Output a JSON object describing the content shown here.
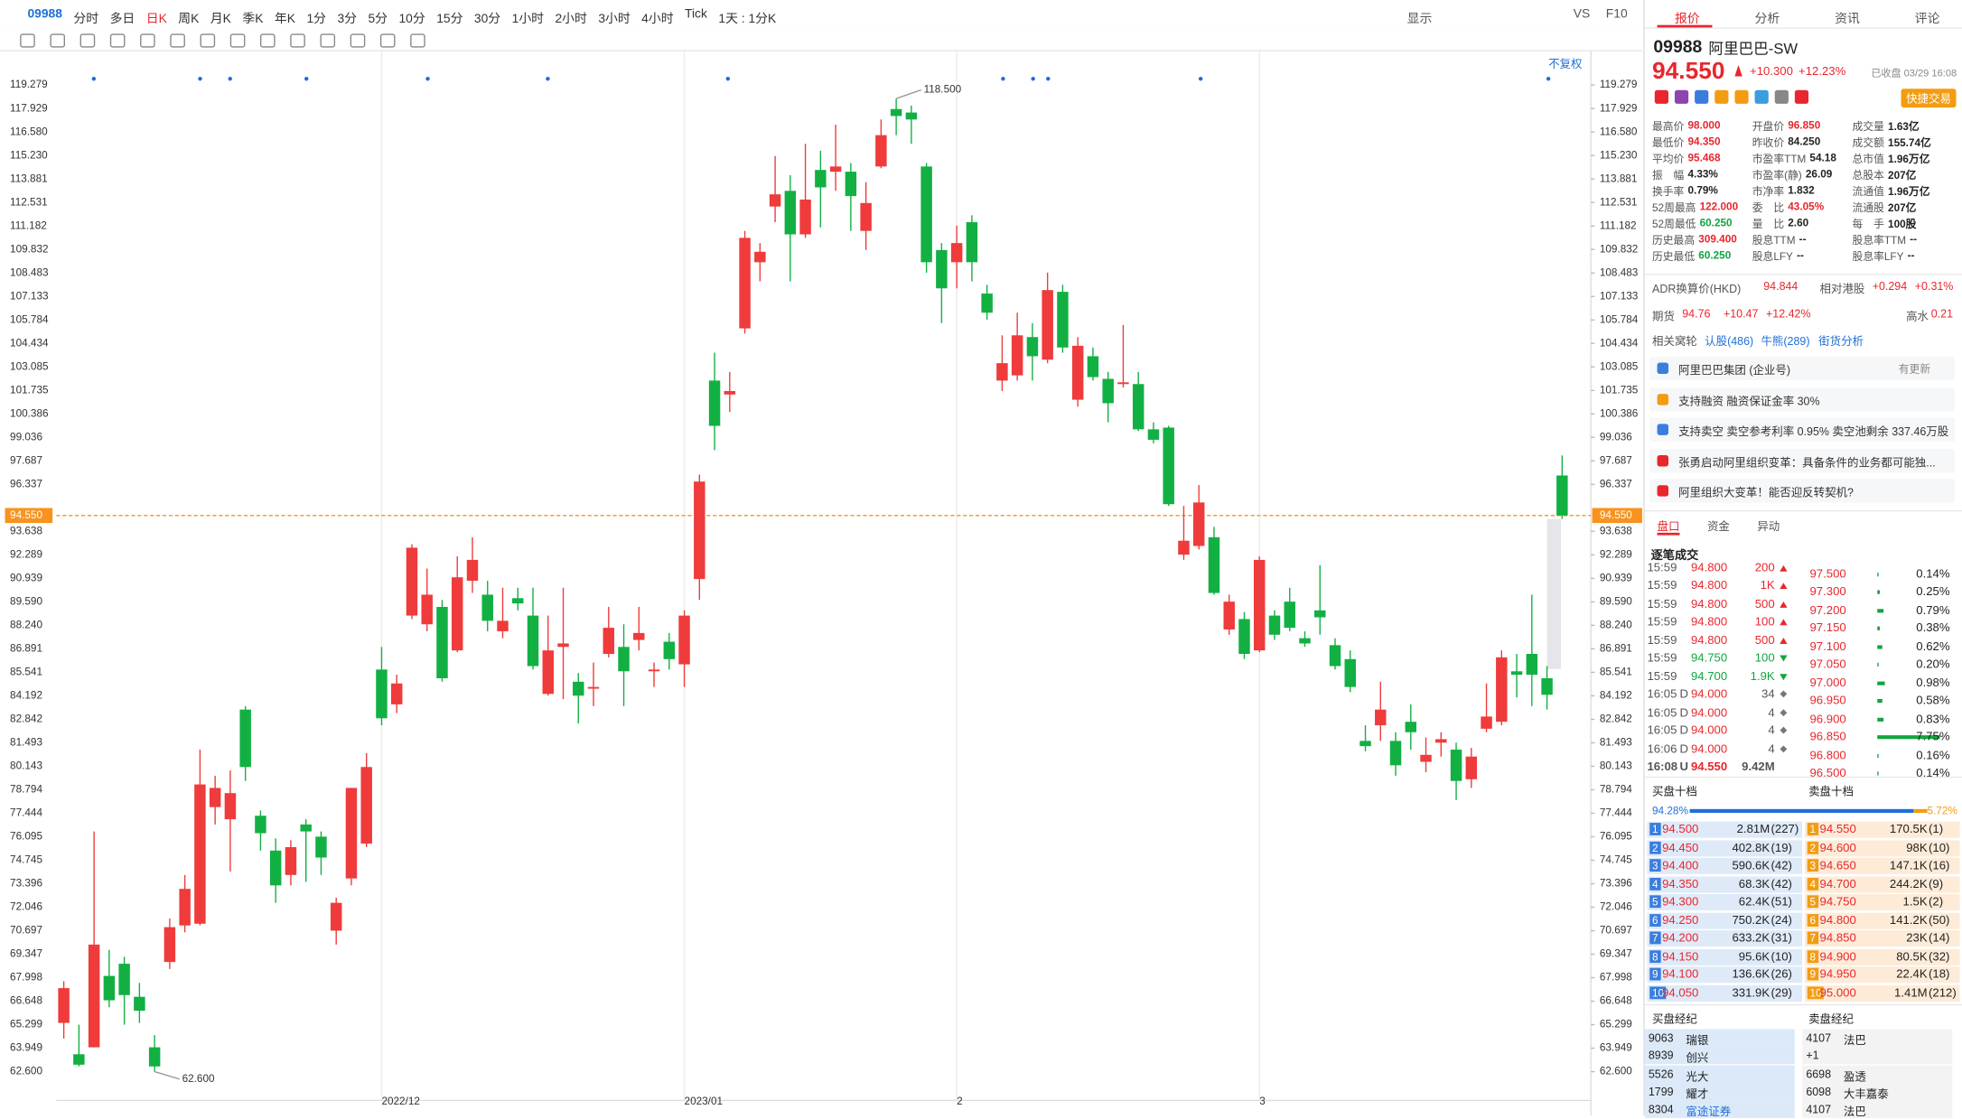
{
  "toolbar": {
    "code": "09988",
    "periods": [
      "分时",
      "多日",
      "日K",
      "周K",
      "月K",
      "季K",
      "年K",
      "1分",
      "3分",
      "5分",
      "10分",
      "15分",
      "30分",
      "1小时",
      "2小时",
      "3小时",
      "4小时",
      "Tick",
      "1天 : 1分K"
    ],
    "right": [
      "显示",
      "VS",
      "F10"
    ],
    "adjust_label": "不复权"
  },
  "chart_data": {
    "type": "candlestick",
    "up_color": "#ef3b3b",
    "down_color": "#12b043",
    "last_price_color": "#f7931e",
    "ylim": [
      62.6,
      119.279
    ],
    "yticks": [
      119.279,
      117.929,
      {
        "value": 116.58,
        "label": "116.580"
      },
      {
        "value": 115.23,
        "label": "115.230"
      },
      113.881,
      112.531,
      111.182,
      109.832,
      108.483,
      107.133,
      105.784,
      104.434,
      103.085,
      101.735,
      100.386,
      99.036,
      97.687,
      96.337,
      93.638,
      92.289,
      90.939,
      {
        "value": 89.59,
        "label": "89.590"
      },
      {
        "value": 88.24,
        "label": "88.240"
      },
      86.891,
      85.541,
      84.192,
      82.842,
      81.493,
      80.143,
      78.794,
      77.444,
      76.095,
      74.745,
      73.396,
      72.046,
      70.697,
      69.347,
      67.998,
      66.648,
      65.299,
      63.949,
      {
        "value": 62.6,
        "label": "62.600"
      }
    ],
    "grid": false,
    "last_price": {
      "value": 94.55,
      "label": "94.550"
    },
    "annotations": [
      {
        "value": 118.5,
        "label": "118.500"
      },
      {
        "value": 62.6,
        "label": "62.600"
      }
    ],
    "categories": [
      null,
      null,
      null,
      null,
      null,
      null,
      null,
      null,
      null,
      null,
      null,
      null,
      null,
      null,
      null,
      null,
      null,
      null,
      null,
      null,
      null,
      "2022/12",
      null,
      null,
      null,
      null,
      null,
      null,
      null,
      null,
      null,
      null,
      null,
      null,
      null,
      null,
      null,
      null,
      null,
      null,
      null,
      "2023/01",
      null,
      null,
      null,
      null,
      null,
      null,
      null,
      null,
      null,
      null,
      null,
      null,
      null,
      null,
      null,
      null,
      null,
      "2",
      null,
      null,
      null,
      null,
      null,
      null,
      null,
      null,
      null,
      null,
      null,
      null,
      null,
      null,
      null,
      null,
      null,
      null,
      null,
      "3",
      null,
      null,
      null,
      null,
      null,
      null,
      null,
      null,
      null,
      null,
      null,
      null,
      null,
      null,
      null,
      null,
      null,
      null,
      null,
      null
    ],
    "ohlc": [
      [
        65.4,
        67.8,
        64.5,
        67.4
      ],
      [
        63.6,
        65.3,
        62.9,
        63.0
      ],
      [
        64.0,
        76.4,
        64.0,
        69.9
      ],
      [
        68.1,
        69.6,
        66.3,
        66.7
      ],
      [
        68.8,
        69.2,
        65.3,
        67.0
      ],
      [
        66.9,
        67.7,
        65.4,
        66.1
      ],
      [
        64.0,
        64.7,
        62.6,
        62.9
      ],
      [
        68.9,
        71.4,
        68.5,
        70.9
      ],
      [
        71.0,
        73.9,
        70.6,
        73.1
      ],
      [
        71.1,
        81.1,
        71.0,
        79.1
      ],
      [
        77.8,
        79.6,
        76.8,
        78.9
      ],
      [
        77.1,
        79.9,
        74.1,
        78.6
      ],
      [
        83.4,
        83.6,
        79.3,
        80.1
      ],
      [
        77.3,
        77.6,
        75.3,
        76.3
      ],
      [
        75.3,
        76.0,
        72.3,
        73.3
      ],
      [
        73.9,
        75.9,
        73.3,
        75.5
      ],
      [
        76.8,
        77.1,
        73.5,
        76.4
      ],
      [
        76.1,
        76.4,
        73.9,
        74.9
      ],
      [
        70.7,
        72.6,
        69.9,
        72.3
      ],
      [
        73.7,
        78.9,
        73.3,
        78.9
      ],
      [
        75.7,
        80.9,
        75.5,
        80.1
      ],
      [
        85.7,
        87.0,
        82.5,
        82.9
      ],
      [
        83.7,
        85.4,
        83.2,
        84.9
      ],
      [
        88.8,
        92.9,
        88.6,
        92.7
      ],
      [
        88.3,
        91.5,
        87.9,
        90.0
      ],
      [
        89.3,
        89.7,
        85.0,
        85.2
      ],
      [
        86.8,
        92.2,
        86.7,
        91.0
      ],
      [
        90.8,
        93.3,
        90.1,
        92.0
      ],
      [
        90.0,
        90.8,
        87.9,
        88.5
      ],
      [
        87.9,
        90.4,
        87.5,
        88.5
      ],
      [
        89.8,
        90.4,
        89.1,
        89.5
      ],
      [
        88.8,
        90.4,
        85.7,
        85.9
      ],
      [
        84.3,
        88.8,
        84.2,
        86.8
      ],
      [
        87.0,
        90.4,
        84.0,
        87.2
      ],
      [
        85.0,
        85.5,
        82.6,
        84.2
      ],
      [
        84.6,
        86.1,
        83.6,
        84.7
      ],
      [
        86.6,
        89.3,
        86.4,
        88.1
      ],
      [
        87.0,
        88.3,
        83.6,
        85.6
      ],
      [
        87.4,
        89.3,
        86.8,
        87.8
      ],
      [
        85.6,
        86.1,
        84.7,
        85.7
      ],
      [
        87.3,
        87.8,
        85.7,
        86.3
      ],
      [
        86.0,
        89.1,
        84.7,
        88.8
      ],
      [
        90.9,
        96.9,
        89.7,
        96.5
      ],
      [
        102.3,
        103.9,
        98.3,
        99.7
      ],
      [
        101.5,
        102.8,
        100.5,
        101.7
      ],
      [
        105.3,
        110.9,
        105.0,
        110.5
      ],
      [
        109.1,
        110.2,
        108.0,
        109.7
      ],
      [
        112.3,
        115.2,
        111.4,
        113.0
      ],
      [
        113.2,
        114.1,
        108.0,
        110.7
      ],
      [
        110.7,
        115.9,
        110.5,
        112.7
      ],
      [
        114.4,
        115.5,
        111.1,
        113.4
      ],
      [
        114.3,
        117.0,
        113.2,
        114.6
      ],
      [
        114.3,
        114.8,
        110.9,
        112.9
      ],
      [
        110.9,
        113.7,
        109.8,
        112.5
      ],
      [
        114.6,
        117.3,
        114.5,
        116.4
      ],
      [
        117.9,
        118.5,
        116.4,
        117.5
      ],
      [
        117.7,
        118.1,
        115.9,
        117.3
      ],
      [
        114.6,
        114.8,
        108.5,
        109.1
      ],
      [
        109.8,
        110.2,
        105.6,
        107.6
      ],
      [
        109.1,
        111.2,
        107.6,
        110.2
      ],
      [
        111.4,
        111.8,
        108.0,
        109.1
      ],
      [
        107.3,
        107.8,
        105.8,
        106.2
      ],
      [
        102.3,
        104.9,
        101.7,
        103.3
      ],
      [
        102.6,
        106.2,
        102.3,
        104.9
      ],
      [
        104.8,
        105.6,
        102.3,
        103.7
      ],
      [
        103.5,
        108.5,
        103.3,
        107.5
      ],
      [
        107.4,
        107.8,
        103.9,
        104.2
      ],
      [
        101.2,
        104.8,
        100.8,
        104.3
      ],
      [
        103.7,
        104.2,
        102.3,
        102.5
      ],
      [
        102.4,
        102.8,
        99.9,
        101.0
      ],
      [
        102.1,
        105.5,
        101.9,
        102.2
      ],
      [
        102.1,
        102.8,
        99.4,
        99.5
      ],
      [
        99.5,
        99.9,
        98.7,
        98.9
      ],
      [
        99.6,
        99.7,
        95.1,
        95.2
      ],
      [
        92.3,
        95.1,
        92.0,
        93.1
      ],
      [
        92.8,
        96.3,
        92.6,
        95.3
      ],
      [
        93.3,
        93.9,
        90.0,
        90.1
      ],
      [
        88.0,
        90.0,
        87.7,
        89.6
      ],
      [
        88.6,
        89.0,
        86.3,
        86.6
      ],
      [
        86.8,
        92.2,
        86.7,
        92.0
      ],
      [
        88.8,
        89.1,
        87.4,
        87.7
      ],
      [
        89.6,
        90.4,
        87.9,
        88.1
      ],
      [
        87.5,
        87.9,
        87.0,
        87.2
      ],
      [
        89.1,
        91.7,
        87.7,
        88.7
      ],
      [
        87.1,
        87.5,
        85.7,
        85.9
      ],
      [
        86.3,
        86.8,
        84.4,
        84.7
      ],
      [
        81.6,
        82.5,
        81.0,
        81.3
      ],
      [
        82.5,
        85.0,
        81.6,
        83.4
      ],
      [
        81.6,
        82.1,
        79.6,
        80.2
      ],
      [
        82.7,
        83.7,
        81.1,
        82.1
      ],
      [
        80.4,
        81.8,
        79.8,
        80.8
      ],
      [
        81.5,
        82.1,
        80.7,
        81.7
      ],
      [
        81.1,
        81.5,
        78.2,
        79.3
      ],
      [
        79.4,
        81.2,
        78.9,
        80.7
      ],
      [
        82.3,
        84.9,
        82.1,
        83.0
      ],
      [
        82.7,
        86.8,
        82.5,
        86.4
      ],
      [
        85.6,
        86.6,
        84.1,
        85.4
      ],
      [
        86.6,
        90.0,
        83.6,
        85.4
      ],
      [
        85.2,
        85.9,
        83.4,
        84.25
      ],
      [
        96.85,
        98.0,
        94.35,
        94.55
      ]
    ]
  },
  "panel": {
    "colors": {
      "up": "#e8262d",
      "down": "#12a53f",
      "flat": "#222222"
    },
    "tabs": [
      "报价",
      "分析",
      "资讯",
      "评论"
    ],
    "quote": {
      "code": "09988",
      "name": "阿里巴巴-SW",
      "price": "94.550",
      "change": "+10.300",
      "change_pct": "+12.23%",
      "status": "已收盘 03/29 16:08",
      "trade_button": "快捷交易"
    },
    "stats": [
      [
        {
          "label": "最高价",
          "value": "98.000",
          "tone": "up"
        },
        {
          "label": "开盘价",
          "value": "96.850",
          "tone": "up"
        },
        {
          "label": "成交量",
          "value": "1.63亿",
          "tone": "flat"
        }
      ],
      [
        {
          "label": "最低价",
          "value": "94.350",
          "tone": "up"
        },
        {
          "label": "昨收价",
          "value": "84.250",
          "tone": "flat"
        },
        {
          "label": "成交额",
          "value": "155.74亿",
          "tone": "flat"
        }
      ],
      [
        {
          "label": "平均价",
          "value": "95.468",
          "tone": "up"
        },
        {
          "label": "市盈率TTM",
          "value": "54.18",
          "tone": "flat"
        },
        {
          "label": "总市值",
          "value": "1.96万亿",
          "tone": "flat"
        }
      ],
      [
        {
          "label": "振　幅",
          "value": "4.33%",
          "tone": "flat"
        },
        {
          "label": "市盈率(静)",
          "value": "26.09",
          "tone": "flat"
        },
        {
          "label": "总股本",
          "value": "207亿",
          "tone": "flat"
        }
      ],
      [
        {
          "label": "换手率",
          "value": "0.79%",
          "tone": "flat"
        },
        {
          "label": "市净率",
          "value": "1.832",
          "tone": "flat"
        },
        {
          "label": "流通值",
          "value": "1.96万亿",
          "tone": "flat"
        }
      ],
      [
        {
          "label": "52周最高",
          "value": "122.000",
          "tone": "up"
        },
        {
          "label": "委　比",
          "value": "43.05%",
          "tone": "up"
        },
        {
          "label": "流通股",
          "value": "207亿",
          "tone": "flat"
        }
      ],
      [
        {
          "label": "52周最低",
          "value": "60.250",
          "tone": "down"
        },
        {
          "label": "量　比",
          "value": "2.60",
          "tone": "flat"
        },
        {
          "label": "每　手",
          "value": "100股",
          "tone": "flat"
        }
      ],
      [
        {
          "label": "历史最高",
          "value": "309.400",
          "tone": "up"
        },
        {
          "label": "股息TTM",
          "value": "--",
          "tone": "flat"
        },
        {
          "label": "股息率TTM",
          "value": "--",
          "tone": "flat"
        }
      ],
      [
        {
          "label": "历史最低",
          "value": "60.250",
          "tone": "down"
        },
        {
          "label": "股息LFY",
          "value": "--",
          "tone": "flat"
        },
        {
          "label": "股息率LFY",
          "value": "--",
          "tone": "flat"
        }
      ]
    ],
    "adr": {
      "label": "ADR换算价(HKD)",
      "value": "94.844",
      "relative_label": "相对港股",
      "change": "+0.294",
      "change_pct": "+0.31%"
    },
    "futures": {
      "label": "期货",
      "value": "94.76",
      "change": "+10.47",
      "change_pct": "+12.42%",
      "premium_label": "高水",
      "premium": "0.21"
    },
    "warrants": {
      "label": "相关窝轮",
      "links": [
        "认股(486)",
        "牛熊(289)",
        "街货分析"
      ]
    },
    "news": [
      {
        "text": "阿里巴巴集团 (企业号)",
        "tag": "有更新"
      },
      {
        "text": "支持融资 融资保证金率 30%"
      },
      {
        "text": "支持卖空 卖空参考利率 0.95% 卖空池剩余 337.46万股"
      },
      {
        "text": "张勇启动阿里组织变革：具备条件的业务都可能独..."
      },
      {
        "text": "阿里组织大变革！能否迎反转契机?"
      }
    ],
    "subtabs": [
      "盘口",
      "资金",
      "异动"
    ],
    "trades": {
      "title": "逐笔成交",
      "rows": [
        {
          "time": "15:59",
          "price": "94.800",
          "volume": "200",
          "dir": "up"
        },
        {
          "time": "15:59",
          "price": "94.800",
          "volume": "1K",
          "dir": "up"
        },
        {
          "time": "15:59",
          "price": "94.800",
          "volume": "500",
          "dir": "up"
        },
        {
          "time": "15:59",
          "price": "94.800",
          "volume": "100",
          "dir": "up"
        },
        {
          "time": "15:59",
          "price": "94.800",
          "volume": "500",
          "dir": "up"
        },
        {
          "time": "15:59",
          "price": "94.750",
          "volume": "100",
          "dir": "down"
        },
        {
          "time": "15:59",
          "price": "94.700",
          "volume": "1.9K",
          "dir": "down"
        },
        {
          "time": "16:05",
          "flag": "D",
          "price": "94.000",
          "volume": "34",
          "dir": "flat"
        },
        {
          "time": "16:05",
          "flag": "D",
          "price": "94.000",
          "volume": "4",
          "dir": "flat"
        },
        {
          "time": "16:05",
          "flag": "D",
          "price": "94.000",
          "volume": "4",
          "dir": "flat"
        },
        {
          "time": "16:06",
          "flag": "D",
          "price": "94.000",
          "volume": "4",
          "dir": "flat"
        },
        {
          "time": "16:08",
          "flag": "U",
          "price": "94.550",
          "volume": "9.42M",
          "dir": "flat"
        }
      ]
    },
    "distribution": [
      [
        "97.500",
        "0.14%"
      ],
      [
        "97.300",
        "0.25%"
      ],
      [
        "97.200",
        "0.79%"
      ],
      [
        "97.150",
        "0.38%"
      ],
      [
        "97.100",
        "0.62%"
      ],
      [
        "97.050",
        "0.20%"
      ],
      [
        "97.000",
        "0.98%"
      ],
      [
        "96.950",
        "0.58%"
      ],
      [
        "96.900",
        "0.83%"
      ],
      [
        "96.850",
        "7.75%"
      ],
      [
        "96.800",
        "0.16%"
      ],
      [
        "96.500",
        "0.14%"
      ]
    ],
    "book": {
      "bid_title": "买盘十档",
      "ask_title": "卖盘十档",
      "bid_ratio": "94.28%",
      "ask_ratio": "5.72%",
      "bids": [
        [
          "1",
          "94.500",
          "2.81M",
          "(227)"
        ],
        [
          "2",
          "94.450",
          "402.8K",
          "(19)"
        ],
        [
          "3",
          "94.400",
          "590.6K",
          "(42)"
        ],
        [
          "4",
          "94.350",
          "68.3K",
          "(42)"
        ],
        [
          "5",
          "94.300",
          "62.4K",
          "(51)"
        ],
        [
          "6",
          "94.250",
          "750.2K",
          "(24)"
        ],
        [
          "7",
          "94.200",
          "633.2K",
          "(31)"
        ],
        [
          "8",
          "94.150",
          "95.6K",
          "(10)"
        ],
        [
          "9",
          "94.100",
          "136.6K",
          "(26)"
        ],
        [
          "10",
          "94.050",
          "331.9K",
          "(29)"
        ]
      ],
      "asks": [
        [
          "1",
          "94.550",
          "170.5K",
          "(1)"
        ],
        [
          "2",
          "94.600",
          "98K",
          "(10)"
        ],
        [
          "3",
          "94.650",
          "147.1K",
          "(16)"
        ],
        [
          "4",
          "94.700",
          "244.2K",
          "(9)"
        ],
        [
          "5",
          "94.750",
          "1.5K",
          "(2)"
        ],
        [
          "6",
          "94.800",
          "141.2K",
          "(50)"
        ],
        [
          "7",
          "94.850",
          "23K",
          "(14)"
        ],
        [
          "8",
          "94.900",
          "80.5K",
          "(32)"
        ],
        [
          "9",
          "94.950",
          "22.4K",
          "(18)"
        ],
        [
          "10",
          "95.000",
          "1.41M",
          "(212)"
        ]
      ]
    },
    "brokers": {
      "bid_title": "买盘经纪",
      "ask_title": "卖盘经纪",
      "bids": [
        [
          "9063",
          "瑞银"
        ],
        [
          "8939",
          "创兴"
        ],
        [
          "5526",
          "光大"
        ],
        [
          "1799",
          "耀才"
        ],
        [
          "8304",
          "富途证券"
        ]
      ],
      "asks": [
        [
          "4107",
          "法巴"
        ],
        [
          "+1"
        ],
        [
          "6698",
          "盈透"
        ],
        [
          "6098",
          "大丰嘉泰"
        ],
        [
          "4107",
          "法巴"
        ]
      ]
    }
  }
}
